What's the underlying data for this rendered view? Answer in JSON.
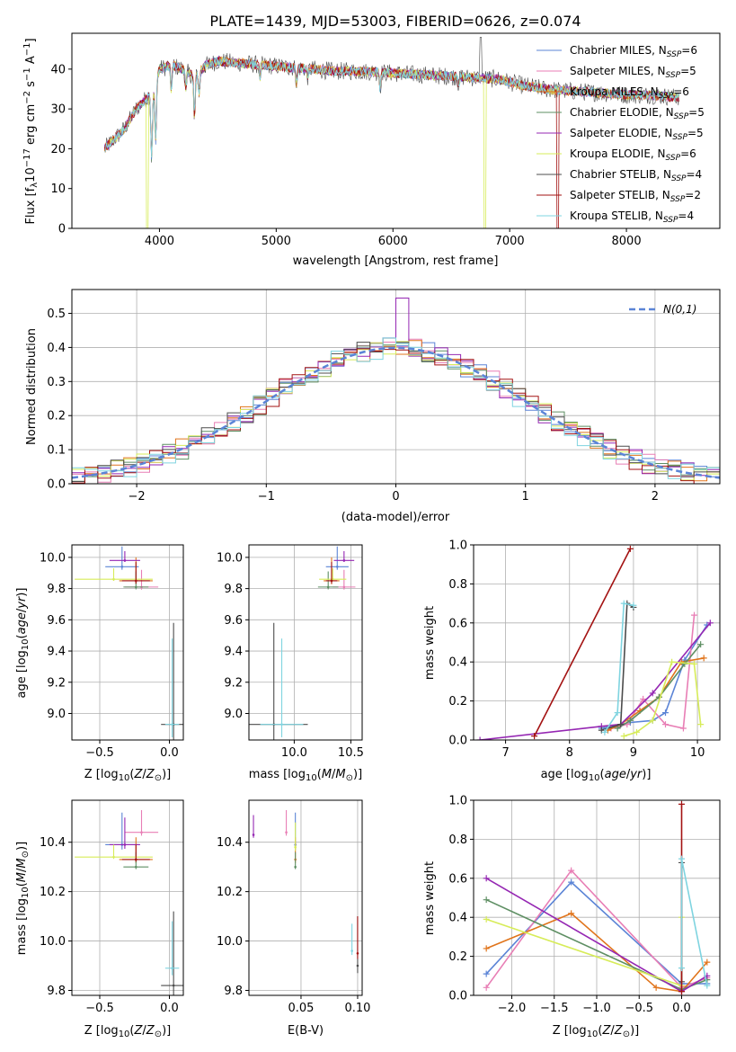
{
  "title": "PLATE=1439, MJD=53003, FIBERID=0626, z=0.074",
  "colors": [
    "#5b84d6",
    "#e87eb5",
    "#e0741b",
    "#5e8f63",
    "#9527b3",
    "#d7ec59",
    "#4c4c4c",
    "#a31212",
    "#7fd4e0"
  ],
  "chart_data": [
    {
      "id": "spectrum",
      "type": "line",
      "title": "PLATE=1439, MJD=53003, FIBERID=0626, z=0.074",
      "xlabel": "wavelength [Angstrom, rest frame]",
      "ylabel": "Flux [fλ10⁻¹⁷ erg cm⁻² s⁻¹ A⁻¹]",
      "xlim": [
        3250,
        8800
      ],
      "ylim": [
        0,
        49
      ],
      "xticks": [
        4000,
        5000,
        6000,
        7000,
        8000
      ],
      "yticks": [
        0,
        10,
        20,
        30,
        40
      ],
      "legend": "top-right",
      "grid": false,
      "legend_entries": [
        "Chabrier MILES, N_SSP=6",
        "Salpeter MILES, N_SSP=5",
        "Kroupa MILES, N_SSP=6",
        "Chabrier ELODIE, N_SSP=5",
        "Salpeter ELODIE, N_SSP=5",
        "Kroupa ELODIE, N_SSP=6",
        "Chabrier STELIB, N_SSP=4",
        "Salpeter STELIB, N_SSP=2",
        "Kroupa STELIB, N_SSP=4"
      ],
      "continuum_x": [
        3530,
        3600,
        3700,
        3800,
        3900,
        3950,
        4000,
        4100,
        4200,
        4300,
        4400,
        4500,
        4700,
        4900,
        5100,
        5300,
        5500,
        5700,
        6000,
        6300,
        6600,
        6900,
        7100,
        7300,
        7500,
        7800,
        8000,
        8200,
        8400
      ],
      "continuum_y": [
        20,
        22,
        25,
        30,
        33,
        34,
        40,
        41,
        40,
        38,
        41,
        42,
        41.5,
        41,
        40.5,
        40,
        39.5,
        39.5,
        39,
        38.5,
        38,
        37.5,
        36,
        35,
        34.5,
        34,
        33.5,
        33.5,
        33
      ]
    },
    {
      "id": "residuals",
      "type": "histogram",
      "xlabel": "(data-model)/error",
      "ylabel": "Normed distribution",
      "xlim": [
        -2.5,
        2.5
      ],
      "ylim": [
        0,
        0.57
      ],
      "xticks": [
        -2,
        -1,
        0,
        1,
        2
      ],
      "yticks": [
        0.0,
        0.1,
        0.2,
        0.3,
        0.4,
        0.5
      ],
      "legend": "top-right",
      "grid": true,
      "reference": "N(0,1)",
      "bin_width": 0.1
    },
    {
      "id": "age_vs_Z",
      "type": "scatter",
      "xlabel": "Z [log10(Z/Z⊙)]",
      "ylabel": "age  [log10(age/yr)]",
      "xlim": [
        -0.7,
        0.1
      ],
      "ylim": [
        8.83,
        10.08
      ],
      "xticks": [
        -0.5,
        0.0
      ],
      "yticks": [
        9.0,
        9.2,
        9.4,
        9.6,
        9.8,
        10.0
      ],
      "grid": true,
      "points": [
        {
          "x": -0.34,
          "y": 9.94,
          "ex": 0.12,
          "ey": 0.13
        },
        {
          "x": -0.2,
          "y": 9.81,
          "ex": 0.12,
          "ey": 0.11
        },
        {
          "x": -0.24,
          "y": 9.85,
          "ex": 0.12,
          "ey": 0.15
        },
        {
          "x": -0.24,
          "y": 9.81,
          "ex": 0.09,
          "ey": 0.1
        },
        {
          "x": -0.32,
          "y": 9.98,
          "ex": 0.11,
          "ey": 0.06
        },
        {
          "x": -0.4,
          "y": 9.86,
          "ex": 0.28,
          "ey": 0.07
        },
        {
          "x": 0.03,
          "y": 8.93,
          "ex": 0.09,
          "ey": 0.65
        },
        {
          "x": -0.24,
          "y": 9.85,
          "ex": 0.1,
          "ey": 0.12
        },
        {
          "x": 0.02,
          "y": 8.93,
          "ex": 0.05,
          "ey": 0.55
        }
      ]
    },
    {
      "id": "age_vs_mass",
      "type": "scatter",
      "xlabel": "mass [log10(M/M⊙)]",
      "ylabel": "",
      "xlim": [
        9.6,
        10.6
      ],
      "ylim": [
        8.83,
        10.08
      ],
      "xticks": [
        10.0,
        10.5
      ],
      "yticks": [
        9.0,
        9.2,
        9.4,
        9.6,
        9.8,
        10.0
      ],
      "grid": true,
      "points": [
        {
          "x": 10.38,
          "y": 9.94,
          "ex": 0.1,
          "ey": 0.13
        },
        {
          "x": 10.44,
          "y": 9.81,
          "ex": 0.1,
          "ey": 0.11
        },
        {
          "x": 10.33,
          "y": 9.85,
          "ex": 0.07,
          "ey": 0.15
        },
        {
          "x": 10.3,
          "y": 9.81,
          "ex": 0.09,
          "ey": 0.1
        },
        {
          "x": 10.44,
          "y": 9.98,
          "ex": 0.09,
          "ey": 0.06
        },
        {
          "x": 10.34,
          "y": 9.86,
          "ex": 0.12,
          "ey": 0.07
        },
        {
          "x": 9.82,
          "y": 8.93,
          "ex": 0.3,
          "ey": 0.65
        },
        {
          "x": 10.33,
          "y": 9.85,
          "ex": 0.05,
          "ey": 0.12
        },
        {
          "x": 9.89,
          "y": 8.93,
          "ex": 0.19,
          "ey": 0.55
        }
      ]
    },
    {
      "id": "weight_vs_age",
      "type": "line",
      "xlabel": "age  [log10(age/yr)]",
      "ylabel": "mass weight",
      "xlim": [
        6.5,
        10.35
      ],
      "ylim": [
        0,
        1
      ],
      "xticks": [
        7,
        8,
        9,
        10
      ],
      "yticks": [
        0.0,
        0.2,
        0.4,
        0.6,
        0.8,
        1.0
      ],
      "grid": true,
      "series": [
        {
          "x": [
            8.5,
            8.95,
            9.3,
            9.5,
            9.8,
            10.15
          ],
          "y": [
            0.06,
            0.09,
            0.1,
            0.14,
            0.41,
            0.59
          ]
        },
        {
          "x": [
            8.65,
            8.9,
            9.15,
            9.5,
            9.78,
            9.95
          ],
          "y": [
            0.06,
            0.08,
            0.21,
            0.08,
            0.06,
            0.64
          ]
        },
        {
          "x": [
            8.6,
            8.8,
            9.1,
            9.4,
            9.75,
            10.1
          ],
          "y": [
            0.05,
            0.08,
            0.15,
            0.22,
            0.4,
            0.42
          ]
        },
        {
          "x": [
            8.75,
            8.95,
            9.4,
            9.8,
            10.05
          ],
          "y": [
            0.06,
            0.1,
            0.22,
            0.39,
            0.49
          ]
        },
        {
          "x": [
            6.6,
            8.5,
            8.8,
            9.3,
            10.2
          ],
          "y": [
            0.0,
            0.07,
            0.08,
            0.24,
            0.6
          ]
        },
        {
          "x": [
            8.85,
            9.05,
            9.3,
            9.6,
            9.95,
            10.05
          ],
          "y": [
            0.02,
            0.04,
            0.1,
            0.4,
            0.39,
            0.08
          ]
        },
        {
          "x": [
            8.5,
            8.8,
            8.9,
            9.0
          ],
          "y": [
            0.05,
            0.08,
            0.7,
            0.68
          ]
        },
        {
          "x": [
            7.45,
            8.95
          ],
          "y": [
            0.02,
            0.98
          ]
        },
        {
          "x": [
            8.55,
            8.75,
            8.85,
            9.0
          ],
          "y": [
            0.04,
            0.14,
            0.7,
            0.69
          ]
        }
      ]
    },
    {
      "id": "mass_vs_Z",
      "type": "scatter",
      "xlabel": "Z [log10(Z/Z⊙)]",
      "ylabel": "mass [log10(M/M⊙)]",
      "xlim": [
        -0.7,
        0.1
      ],
      "ylim": [
        9.78,
        10.57
      ],
      "xticks": [
        -0.5,
        0.0
      ],
      "yticks": [
        9.8,
        10.0,
        10.2,
        10.4
      ],
      "grid": true,
      "points": [
        {
          "x": -0.34,
          "y": 10.39,
          "ex": 0.12,
          "ey": 0.13
        },
        {
          "x": -0.2,
          "y": 10.44,
          "ex": 0.12,
          "ey": 0.09
        },
        {
          "x": -0.24,
          "y": 10.33,
          "ex": 0.12,
          "ey": 0.09
        },
        {
          "x": -0.24,
          "y": 10.3,
          "ex": 0.09,
          "ey": 0.06
        },
        {
          "x": -0.32,
          "y": 10.39,
          "ex": 0.11,
          "ey": 0.11
        },
        {
          "x": -0.4,
          "y": 10.34,
          "ex": 0.28,
          "ey": 0.05
        },
        {
          "x": 0.03,
          "y": 9.82,
          "ex": 0.09,
          "ey": 0.3
        },
        {
          "x": -0.24,
          "y": 10.33,
          "ex": 0.1,
          "ey": 0.06
        },
        {
          "x": 0.02,
          "y": 9.89,
          "ex": 0.05,
          "ey": 0.19
        }
      ]
    },
    {
      "id": "mass_vs_EBV",
      "type": "scatter",
      "xlabel": "E(B-V)",
      "ylabel": "",
      "xlim": [
        0.004,
        0.104
      ],
      "ylim": [
        9.78,
        10.57
      ],
      "xticks": [
        0.05,
        0.1
      ],
      "yticks": [
        9.8,
        10.0,
        10.2,
        10.4
      ],
      "grid": true,
      "points": [
        {
          "x": 0.045,
          "y": 10.39,
          "ex": 0,
          "ey": 0.13
        },
        {
          "x": 0.037,
          "y": 10.44,
          "ex": 0,
          "ey": 0.09
        },
        {
          "x": 0.045,
          "y": 10.33,
          "ex": 0,
          "ey": 0.09
        },
        {
          "x": 0.045,
          "y": 10.3,
          "ex": 0,
          "ey": 0.06
        },
        {
          "x": 0.008,
          "y": 10.43,
          "ex": 0,
          "ey": 0.08
        },
        {
          "x": 0.045,
          "y": 10.38,
          "ex": 0,
          "ey": 0.1
        },
        {
          "x": 0.1,
          "y": 9.9,
          "ex": 0,
          "ey": 0.2
        },
        {
          "x": 0.1,
          "y": 9.95,
          "ex": 0,
          "ey": 0.15
        },
        {
          "x": 0.095,
          "y": 9.96,
          "ex": 0,
          "ey": 0.11
        }
      ]
    },
    {
      "id": "weight_vs_Z",
      "type": "line",
      "xlabel": "Z [log10(Z/Z⊙)]",
      "ylabel": "mass weight",
      "xlim": [
        -2.45,
        0.45
      ],
      "ylim": [
        0,
        1
      ],
      "xticks": [
        -2.0,
        -1.5,
        -1.0,
        -0.5,
        0.0
      ],
      "yticks": [
        0.0,
        0.2,
        0.4,
        0.6,
        0.8,
        1.0
      ],
      "grid": true,
      "series": [
        {
          "x": [
            -2.3,
            -1.3,
            0.0,
            0.3
          ],
          "y": [
            0.11,
            0.58,
            0.06,
            0.06
          ]
        },
        {
          "x": [
            -2.3,
            -1.3,
            0.0,
            0.3
          ],
          "y": [
            0.04,
            0.64,
            0.04,
            0.09
          ]
        },
        {
          "x": [
            -2.3,
            -1.3,
            -0.3,
            0.0,
            0.3
          ],
          "y": [
            0.24,
            0.42,
            0.04,
            0.02,
            0.17
          ]
        },
        {
          "x": [
            -2.3,
            0.0,
            0.3
          ],
          "y": [
            0.49,
            0.03,
            0.08
          ]
        },
        {
          "x": [
            -2.3,
            0.0,
            0.3
          ],
          "y": [
            0.6,
            0.02,
            0.1
          ]
        },
        {
          "x": [
            -2.3,
            0.0,
            0.0
          ],
          "y": [
            0.39,
            0.05,
            0.4
          ]
        },
        {
          "x": [
            0.0,
            0.0
          ],
          "y": [
            0.07,
            0.68
          ]
        },
        {
          "x": [
            0.0,
            0.0
          ],
          "y": [
            0.02,
            0.98
          ]
        },
        {
          "x": [
            0.0,
            0.0,
            0.3
          ],
          "y": [
            0.14,
            0.7,
            0.05
          ]
        }
      ]
    }
  ]
}
